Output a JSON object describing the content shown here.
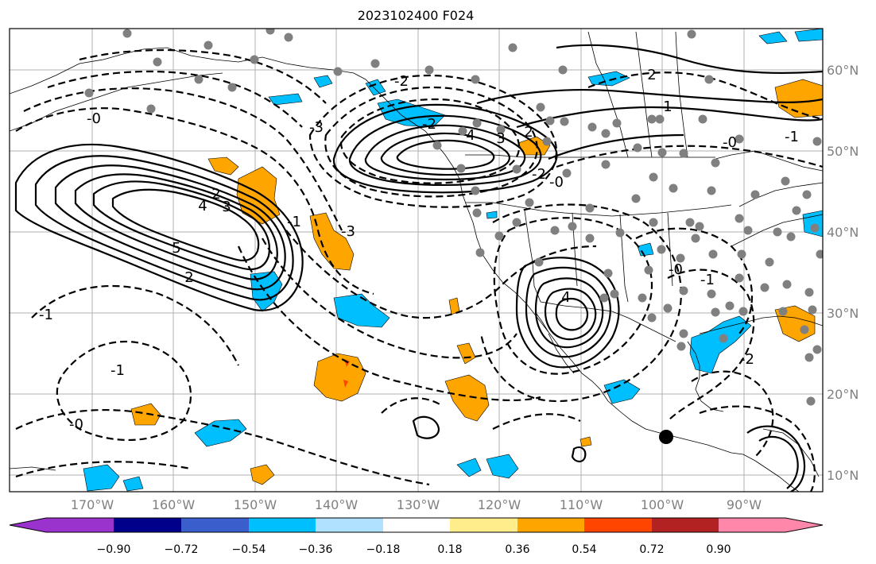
{
  "title": "2023102400 F024",
  "axes": {
    "longitude_labels": [
      "170°W",
      "160°W",
      "150°W",
      "140°W",
      "130°W",
      "120°W",
      "110°W",
      "100°W",
      "90°W"
    ],
    "latitude_labels": [
      "60°N",
      "50°N",
      "40°N",
      "30°N",
      "20°N",
      "10°N"
    ]
  },
  "contour_labels": {
    "solid": [
      "5",
      "4",
      "3",
      "2",
      "2",
      "4",
      "3",
      "2",
      "2",
      "4",
      "1"
    ],
    "dashed": [
      "-0",
      "-1",
      "-2",
      "-3",
      "-1",
      "-3",
      "-2",
      "-0",
      "-1",
      "-0",
      "-1",
      "-2",
      "-0",
      "-1",
      "-2",
      "-0"
    ]
  },
  "colorbar": {
    "ticks": [
      "−0.90",
      "−0.72",
      "−0.54",
      "−0.36",
      "−0.18",
      "0.18",
      "0.36",
      "0.54",
      "0.72",
      "0.90"
    ],
    "colors": [
      "#9a32cd",
      "#00008b",
      "#3a5fcd",
      "#00bfff",
      "#b0e2ff",
      "#ffffff",
      "#ffec8b",
      "#ffa500",
      "#ff4500",
      "#b22222",
      "#ff88aa"
    ]
  },
  "markers": {
    "station_color": "#808080",
    "highlight_color": "#000000"
  }
}
